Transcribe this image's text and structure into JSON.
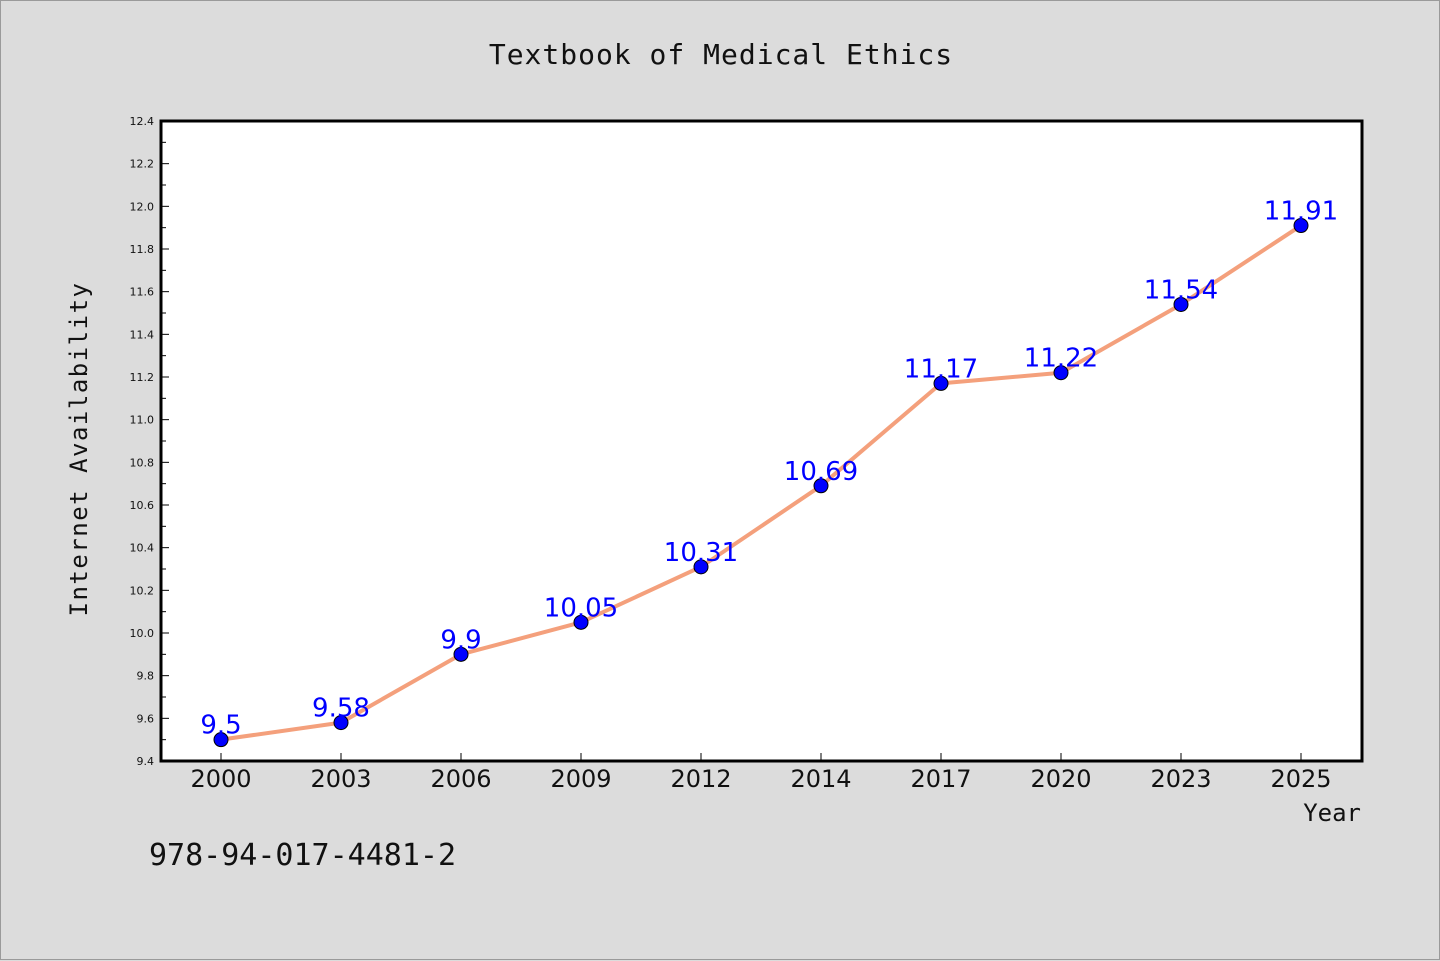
{
  "footnote": "978-94-017-4481-2",
  "chart_data": {
    "type": "line",
    "title": "Textbook of Medical Ethics",
    "xlabel": "Year",
    "ylabel": "Internet Availability",
    "categories": [
      "2000",
      "2003",
      "2006",
      "2009",
      "2012",
      "2014",
      "2017",
      "2020",
      "2023",
      "2025"
    ],
    "series": [
      {
        "values": [
          9.5,
          9.58,
          9.9,
          10.05,
          10.31,
          10.69,
          11.17,
          11.22,
          11.54,
          11.91
        ],
        "labels": [
          "9.5",
          "9.58",
          "9.9",
          "10.05",
          "10.31",
          "10.69",
          "11.17",
          "11.22",
          "11.54",
          "11.91"
        ],
        "line_color": "#f4a07c",
        "marker_color": "#0000ff",
        "label_color": "#0000ff"
      }
    ],
    "ylim": [
      9.4,
      12.4
    ],
    "yticks": [
      "9.4",
      "9.6",
      "9.8",
      "10.0",
      "10.2",
      "10.4",
      "10.6",
      "10.8",
      "11.0",
      "11.2",
      "11.4",
      "11.6",
      "11.8",
      "12.0",
      "12.2",
      "12.4"
    ],
    "grid": false,
    "legend": "none",
    "background": "#dcdcdc",
    "plot_background": "#ffffff"
  }
}
